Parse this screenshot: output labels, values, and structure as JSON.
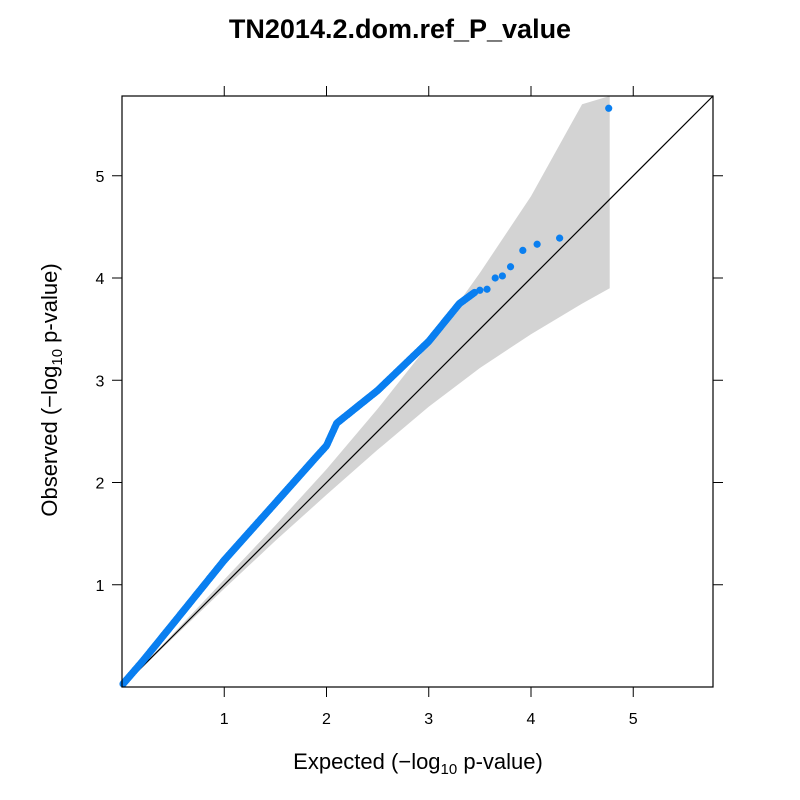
{
  "chart_data": {
    "type": "scatter",
    "title": "TN2014.2.dom.ref_P_value",
    "xlabel": {
      "prefix": "Expected (",
      "minus": "−",
      "log": "log",
      "sub": "10",
      "suffix": " p-value)"
    },
    "ylabel": {
      "prefix": "Observed (",
      "minus": "−",
      "log": "log",
      "sub": "10",
      "suffix": " p-value)"
    },
    "xlim": [
      0,
      5.78
    ],
    "ylim": [
      0,
      5.78
    ],
    "xticks": [
      1,
      2,
      3,
      4,
      5
    ],
    "yticks": [
      1,
      2,
      3,
      4,
      5
    ],
    "reference_line": {
      "from": [
        0,
        0
      ],
      "to": [
        5.78,
        5.78
      ]
    },
    "confidence_band": {
      "x": [
        0.0,
        0.5,
        1.0,
        1.5,
        2.0,
        2.5,
        3.0,
        3.5,
        4.0,
        4.5,
        4.77
      ],
      "lower": [
        0.0,
        0.48,
        0.96,
        1.43,
        1.88,
        2.32,
        2.74,
        3.12,
        3.45,
        3.75,
        3.9
      ],
      "upper": [
        0.0,
        0.52,
        1.05,
        1.58,
        2.13,
        2.72,
        3.35,
        4.05,
        4.8,
        5.7,
        5.78
      ]
    },
    "series": [
      {
        "color": "#0a7ff0",
        "curve": {
          "x": [
            0.01,
            0.2,
            0.5,
            1.0,
            1.5,
            1.9,
            2.0,
            2.1,
            2.5,
            3.0,
            3.3,
            3.45
          ],
          "y": [
            0.03,
            0.25,
            0.62,
            1.24,
            1.8,
            2.25,
            2.36,
            2.58,
            2.9,
            3.38,
            3.75,
            3.86
          ]
        },
        "points": {
          "x": [
            3.5,
            3.57,
            3.65,
            3.72,
            3.8,
            3.92,
            4.06,
            4.28,
            4.76
          ],
          "y": [
            3.88,
            3.89,
            4.0,
            4.02,
            4.11,
            4.27,
            4.33,
            4.39,
            5.66
          ]
        }
      }
    ]
  }
}
